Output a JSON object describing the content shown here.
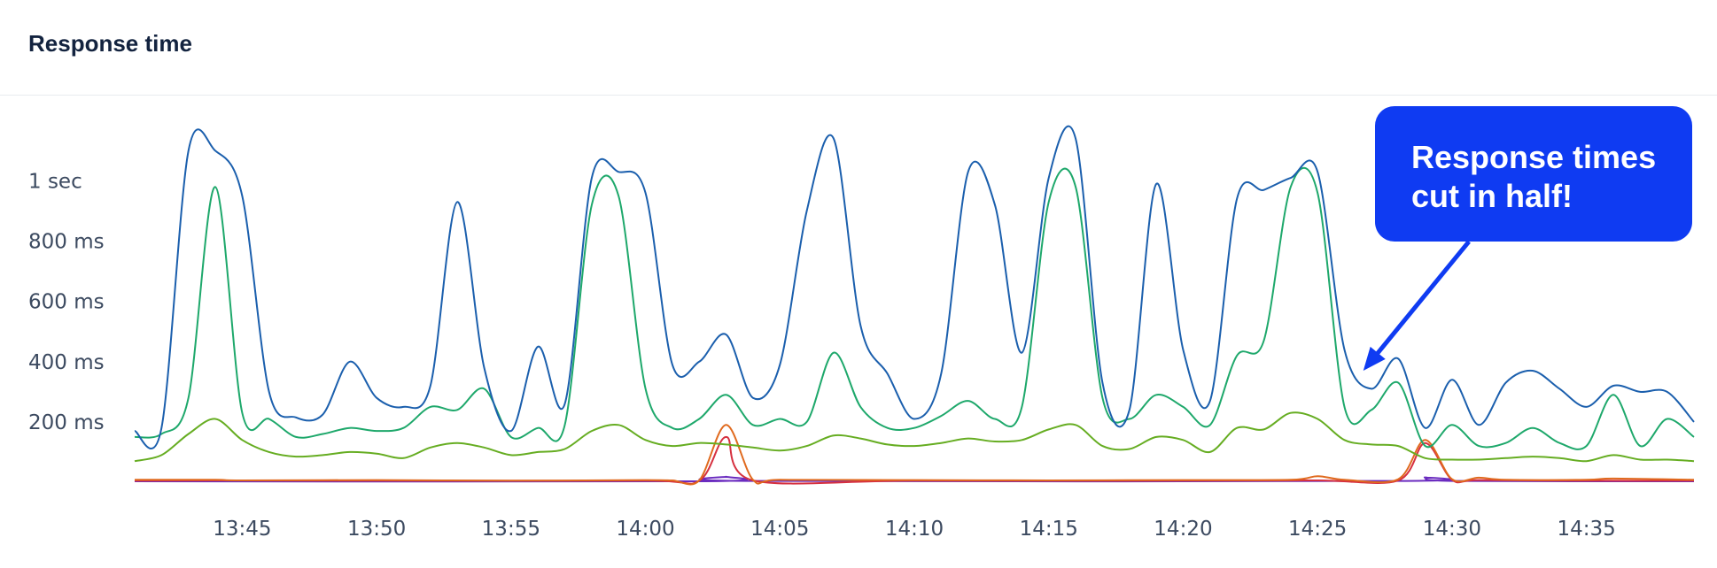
{
  "panel": {
    "title": "Response time"
  },
  "callout": {
    "line1": "Response times",
    "line2": "cut in half!",
    "color": "#0f3bf2"
  },
  "chart_data": {
    "type": "line",
    "title": "Response time",
    "xlabel": "",
    "ylabel": "",
    "x_range": [
      "13:41",
      "14:39"
    ],
    "ylim": [
      0,
      1250
    ],
    "y_unit": "ms",
    "y_ticks": [
      {
        "value": 200,
        "label": "200 ms"
      },
      {
        "value": 400,
        "label": "400 ms"
      },
      {
        "value": 600,
        "label": "600 ms"
      },
      {
        "value": 800,
        "label": "800 ms"
      },
      {
        "value": 1000,
        "label": "1 sec"
      }
    ],
    "x_ticks": [
      "13:45",
      "13:50",
      "13:55",
      "14:00",
      "14:05",
      "14:10",
      "14:15",
      "14:20",
      "14:25",
      "14:30",
      "14:35"
    ],
    "grid": false,
    "legend": "none",
    "annotation": {
      "text": "Response times cut in half!",
      "arrow_to": {
        "x": "14:26.7",
        "y": 370
      }
    },
    "series": [
      {
        "color": "#1b5fad",
        "points": [
          [
            "13:41",
            170
          ],
          [
            "13:42",
            180
          ],
          [
            "13:43",
            1100
          ],
          [
            "13:44",
            1100
          ],
          [
            "13:45",
            950
          ],
          [
            "13:46",
            300
          ],
          [
            "13:47",
            215
          ],
          [
            "13:48",
            225
          ],
          [
            "13:49",
            400
          ],
          [
            "13:50",
            280
          ],
          [
            "13:51",
            250
          ],
          [
            "13:52",
            320
          ],
          [
            "13:53",
            930
          ],
          [
            "13:54",
            380
          ],
          [
            "13:55",
            170
          ],
          [
            "13:56",
            450
          ],
          [
            "13:57",
            260
          ],
          [
            "13:58",
            1010
          ],
          [
            "13:59",
            1030
          ],
          [
            "14:00",
            960
          ],
          [
            "14:01",
            390
          ],
          [
            "14:02",
            400
          ],
          [
            "14:03",
            490
          ],
          [
            "14:04",
            280
          ],
          [
            "14:05",
            390
          ],
          [
            "14:06",
            900
          ],
          [
            "14:07",
            1140
          ],
          [
            "14:08",
            520
          ],
          [
            "14:09",
            360
          ],
          [
            "14:10",
            210
          ],
          [
            "14:11",
            360
          ],
          [
            "14:12",
            1030
          ],
          [
            "14:13",
            920
          ],
          [
            "14:14",
            430
          ],
          [
            "14:15",
            1010
          ],
          [
            "14:16",
            1140
          ],
          [
            "14:17",
            330
          ],
          [
            "14:18",
            240
          ],
          [
            "14:19",
            990
          ],
          [
            "14:20",
            440
          ],
          [
            "14:21",
            270
          ],
          [
            "14:22",
            940
          ],
          [
            "14:23",
            970
          ],
          [
            "14:24",
            1010
          ],
          [
            "14:25",
            1030
          ],
          [
            "14:26",
            440
          ],
          [
            "14:27",
            310
          ],
          [
            "14:28",
            410
          ],
          [
            "14:29",
            180
          ],
          [
            "14:30",
            340
          ],
          [
            "14:31",
            190
          ],
          [
            "14:32",
            330
          ],
          [
            "14:33",
            370
          ],
          [
            "14:34",
            310
          ],
          [
            "14:35",
            250
          ],
          [
            "14:36",
            320
          ],
          [
            "14:37",
            300
          ],
          [
            "14:38",
            300
          ],
          [
            "14:39",
            200
          ]
        ]
      },
      {
        "color": "#1ea86b",
        "points": [
          [
            "13:41",
            150
          ],
          [
            "13:42",
            160
          ],
          [
            "13:43",
            280
          ],
          [
            "13:44",
            980
          ],
          [
            "13:45",
            230
          ],
          [
            "13:46",
            210
          ],
          [
            "13:47",
            150
          ],
          [
            "13:48",
            160
          ],
          [
            "13:49",
            180
          ],
          [
            "13:50",
            170
          ],
          [
            "13:51",
            180
          ],
          [
            "13:52",
            250
          ],
          [
            "13:53",
            240
          ],
          [
            "13:54",
            310
          ],
          [
            "13:55",
            150
          ],
          [
            "13:56",
            180
          ],
          [
            "13:57",
            190
          ],
          [
            "13:58",
            920
          ],
          [
            "13:59",
            950
          ],
          [
            "14:00",
            310
          ],
          [
            "14:01",
            180
          ],
          [
            "14:02",
            210
          ],
          [
            "14:03",
            290
          ],
          [
            "14:04",
            190
          ],
          [
            "14:05",
            210
          ],
          [
            "14:06",
            200
          ],
          [
            "14:07",
            430
          ],
          [
            "14:08",
            250
          ],
          [
            "14:09",
            180
          ],
          [
            "14:10",
            180
          ],
          [
            "14:11",
            220
          ],
          [
            "14:12",
            270
          ],
          [
            "14:13",
            210
          ],
          [
            "14:14",
            250
          ],
          [
            "14:15",
            930
          ],
          [
            "14:16",
            980
          ],
          [
            "14:17",
            280
          ],
          [
            "14:18",
            210
          ],
          [
            "14:19",
            290
          ],
          [
            "14:20",
            250
          ],
          [
            "14:21",
            190
          ],
          [
            "14:22",
            420
          ],
          [
            "14:23",
            470
          ],
          [
            "14:24",
            980
          ],
          [
            "14:25",
            960
          ],
          [
            "14:26",
            250
          ],
          [
            "14:27",
            240
          ],
          [
            "14:28",
            330
          ],
          [
            "14:29",
            120
          ],
          [
            "14:30",
            190
          ],
          [
            "14:31",
            120
          ],
          [
            "14:32",
            130
          ],
          [
            "14:33",
            180
          ],
          [
            "14:34",
            130
          ],
          [
            "14:35",
            120
          ],
          [
            "14:36",
            290
          ],
          [
            "14:37",
            120
          ],
          [
            "14:38",
            210
          ],
          [
            "14:39",
            150
          ]
        ]
      },
      {
        "color": "#66ad22",
        "points": [
          [
            "13:41",
            70
          ],
          [
            "13:42",
            90
          ],
          [
            "13:43",
            160
          ],
          [
            "13:44",
            210
          ],
          [
            "13:45",
            140
          ],
          [
            "13:46",
            100
          ],
          [
            "13:47",
            85
          ],
          [
            "13:48",
            90
          ],
          [
            "13:49",
            100
          ],
          [
            "13:50",
            95
          ],
          [
            "13:51",
            80
          ],
          [
            "13:52",
            115
          ],
          [
            "13:53",
            130
          ],
          [
            "13:54",
            115
          ],
          [
            "13:55",
            90
          ],
          [
            "13:56",
            100
          ],
          [
            "13:57",
            110
          ],
          [
            "13:58",
            170
          ],
          [
            "13:59",
            190
          ],
          [
            "14:00",
            140
          ],
          [
            "14:01",
            120
          ],
          [
            "14:02",
            130
          ],
          [
            "14:03",
            125
          ],
          [
            "14:04",
            115
          ],
          [
            "14:05",
            105
          ],
          [
            "14:06",
            120
          ],
          [
            "14:07",
            155
          ],
          [
            "14:08",
            145
          ],
          [
            "14:09",
            125
          ],
          [
            "14:10",
            120
          ],
          [
            "14:11",
            130
          ],
          [
            "14:12",
            145
          ],
          [
            "14:13",
            135
          ],
          [
            "14:14",
            140
          ],
          [
            "14:15",
            175
          ],
          [
            "14:16",
            190
          ],
          [
            "14:17",
            120
          ],
          [
            "14:18",
            110
          ],
          [
            "14:19",
            150
          ],
          [
            "14:20",
            140
          ],
          [
            "14:21",
            100
          ],
          [
            "14:22",
            180
          ],
          [
            "14:23",
            175
          ],
          [
            "14:24",
            230
          ],
          [
            "14:25",
            210
          ],
          [
            "14:26",
            140
          ],
          [
            "14:27",
            125
          ],
          [
            "14:28",
            120
          ],
          [
            "14:29",
            80
          ],
          [
            "14:30",
            75
          ],
          [
            "14:31",
            75
          ],
          [
            "14:32",
            80
          ],
          [
            "14:33",
            85
          ],
          [
            "14:34",
            80
          ],
          [
            "14:35",
            70
          ],
          [
            "14:36",
            90
          ],
          [
            "14:37",
            75
          ],
          [
            "14:38",
            75
          ],
          [
            "14:39",
            70
          ]
        ]
      },
      {
        "color": "#e06a1e",
        "points": [
          [
            "13:41",
            8
          ],
          [
            "13:44",
            8
          ],
          [
            "13:45",
            6
          ],
          [
            "13:50",
            7
          ],
          [
            "13:55",
            5
          ],
          [
            "14:00",
            7
          ],
          [
            "14:01",
            6
          ],
          [
            "14:02",
            6
          ],
          [
            "14:03",
            190
          ],
          [
            "14:04",
            8
          ],
          [
            "14:05",
            8
          ],
          [
            "14:10",
            7
          ],
          [
            "14:15",
            6
          ],
          [
            "14:20",
            7
          ],
          [
            "14:24",
            8
          ],
          [
            "14:25",
            20
          ],
          [
            "14:26",
            8
          ],
          [
            "14:28",
            10
          ],
          [
            "14:29",
            140
          ],
          [
            "14:30",
            10
          ],
          [
            "14:31",
            15
          ],
          [
            "14:32",
            8
          ],
          [
            "14:35",
            8
          ],
          [
            "14:36",
            12
          ],
          [
            "14:39",
            8
          ]
        ]
      },
      {
        "color": "#d6303f",
        "points": [
          [
            "13:41",
            5
          ],
          [
            "13:44",
            6
          ],
          [
            "13:50",
            5
          ],
          [
            "14:00",
            5
          ],
          [
            "14:02",
            5
          ],
          [
            "14:03",
            150
          ],
          [
            "14:04",
            6
          ],
          [
            "14:10",
            5
          ],
          [
            "14:20",
            5
          ],
          [
            "14:25",
            6
          ],
          [
            "14:28",
            6
          ],
          [
            "14:29",
            130
          ],
          [
            "14:30",
            8
          ],
          [
            "14:31",
            7
          ],
          [
            "14:35",
            5
          ],
          [
            "14:39",
            5
          ]
        ]
      },
      {
        "color": "#6a2bbf",
        "points": [
          [
            "13:41",
            3
          ],
          [
            "14:02",
            3
          ],
          [
            "14:03",
            18
          ],
          [
            "14:04",
            4
          ],
          [
            "14:28",
            4
          ],
          [
            "14:29",
            16
          ],
          [
            "14:30",
            4
          ],
          [
            "14:39",
            3
          ]
        ]
      }
    ]
  }
}
